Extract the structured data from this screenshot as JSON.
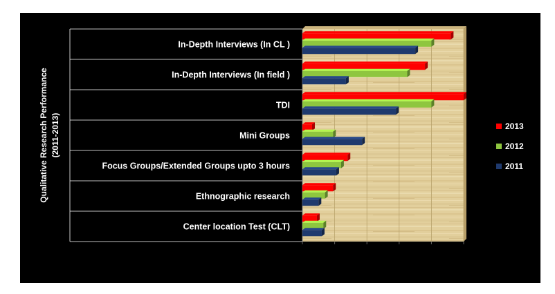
{
  "chart_data": {
    "type": "bar",
    "orientation": "horizontal",
    "ylabel": [
      "Qualitative Research Performance",
      "(2011-2013)"
    ],
    "categories": [
      "In-Depth Interviews   (In CL )",
      "In-Depth Interviews (In field )",
      "TDI",
      "Mini Groups",
      "Focus Groups/Extended Groups upto 3 hours",
      "Ethnographic research",
      "Center location Test (CLT)"
    ],
    "series": [
      {
        "name": "2013",
        "color": "#ff0000",
        "values": [
          9.2,
          7.6,
          10.0,
          0.6,
          2.8,
          1.9,
          0.9
        ]
      },
      {
        "name": "2012",
        "color": "#8ec63f",
        "values": [
          8.0,
          6.5,
          8.0,
          1.9,
          2.4,
          1.4,
          1.3
        ]
      },
      {
        "name": "2011",
        "color": "#1f3a6e",
        "values": [
          7.0,
          2.7,
          5.8,
          3.7,
          2.1,
          1.0,
          1.2
        ]
      }
    ],
    "xlim": [
      0,
      10
    ],
    "grid": true,
    "legend_position": "right",
    "plot_background": "wood-texture"
  }
}
